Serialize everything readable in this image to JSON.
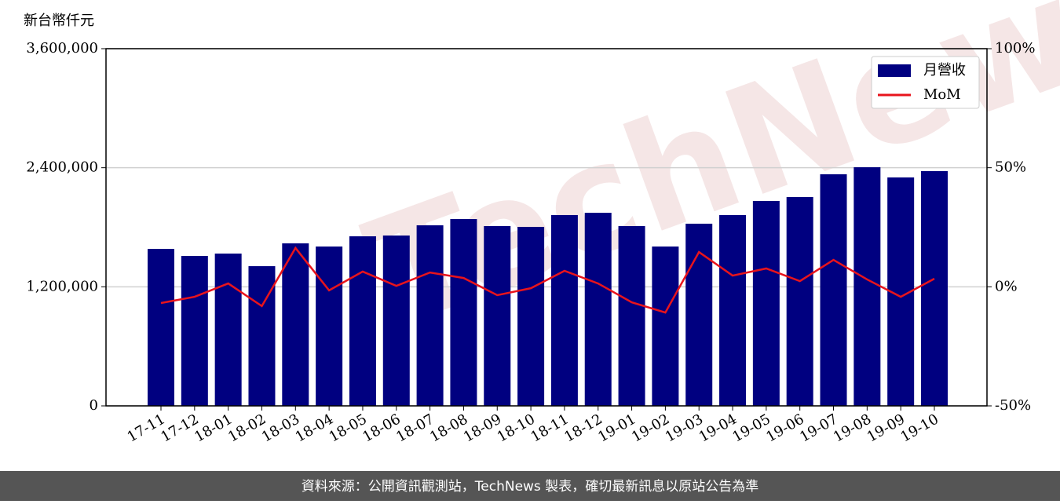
{
  "chart_data": {
    "type": "bar-line",
    "y_axis_label": "新台幣仟元",
    "watermark": "TechNews",
    "footer": "資料來源：公開資訊觀測站，TechNews 製表，確切最新訊息以原站公告為準",
    "categories": [
      "17-11",
      "17-12",
      "18-01",
      "18-02",
      "18-03",
      "18-04",
      "18-05",
      "18-06",
      "18-07",
      "18-08",
      "18-09",
      "18-10",
      "18-11",
      "18-12",
      "19-01",
      "19-02",
      "19-03",
      "19-04",
      "19-05",
      "19-06",
      "19-07",
      "19-08",
      "19-09",
      "19-10"
    ],
    "series": [
      {
        "name": "月營收",
        "type": "bar",
        "color": "#000080",
        "values": [
          1582000,
          1511000,
          1535000,
          1408000,
          1638000,
          1606000,
          1709000,
          1717000,
          1820000,
          1883000,
          1812000,
          1804000,
          1923000,
          1946000,
          1812000,
          1606000,
          1836000,
          1923000,
          2065000,
          2105000,
          2334000,
          2405000,
          2302000,
          2366000
        ]
      },
      {
        "name": "MoM",
        "type": "line",
        "axis": "y2",
        "color": "#e8141c",
        "values": [
          -6.8,
          -4.2,
          1.4,
          -8.1,
          16.3,
          -1.5,
          6.4,
          0.4,
          6.0,
          3.7,
          -3.5,
          -0.6,
          6.7,
          1.4,
          -6.5,
          -10.8,
          14.6,
          4.7,
          7.7,
          2.4,
          11.3,
          3.1,
          -4.2,
          3.4
        ]
      }
    ],
    "ylim": [
      0,
      3600000
    ],
    "yticks": [
      0,
      {
        "value": 1200000,
        "label": "1,200,000"
      },
      {
        "value": 2400000,
        "label": "2,400,000"
      },
      {
        "value": 3600000,
        "label": "3,600,000"
      }
    ],
    "y2lim": [
      -50,
      100
    ],
    "y2ticks": [
      {
        "value": -50,
        "label": "-50%"
      },
      {
        "value": 0,
        "label": "0%"
      },
      {
        "value": 50,
        "label": "50%"
      },
      {
        "value": 100,
        "label": "100%"
      }
    ],
    "grid": true,
    "legend": "upper right"
  }
}
